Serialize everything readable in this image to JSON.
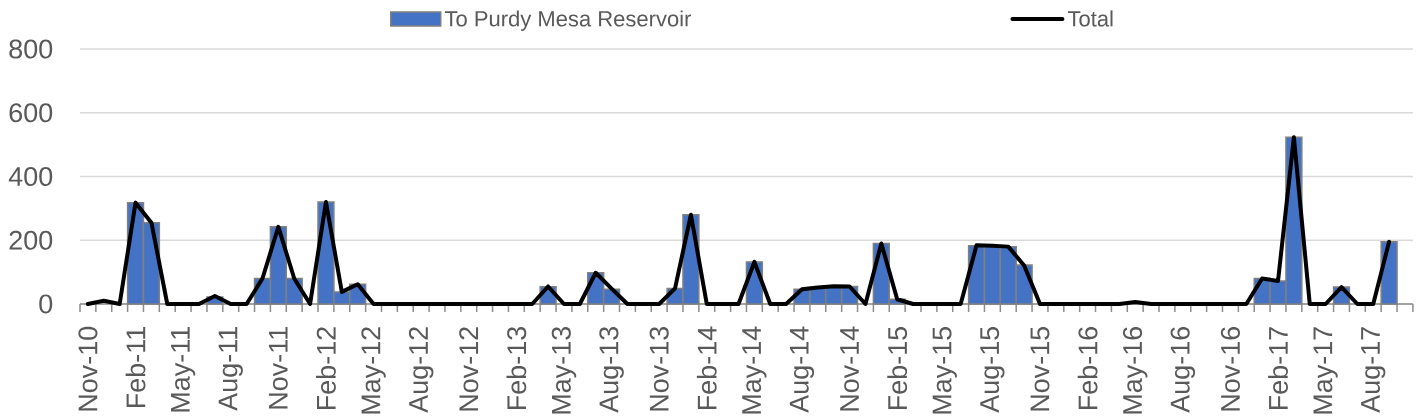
{
  "chart_data": {
    "type": "bar",
    "categories": [
      "Nov-10",
      null,
      null,
      "Feb-11",
      null,
      null,
      "May-11",
      null,
      null,
      "Aug-11",
      null,
      null,
      "Nov-11",
      null,
      null,
      "Feb-12",
      null,
      null,
      "May-12",
      null,
      null,
      "Aug-12",
      null,
      null,
      "Nov-12",
      null,
      null,
      "Feb-13",
      null,
      null,
      "May-13",
      null,
      null,
      "Aug-13",
      null,
      null,
      "Nov-13",
      null,
      null,
      "Feb-14",
      null,
      null,
      "May-14",
      null,
      null,
      "Aug-14",
      null,
      null,
      "Nov-14",
      null,
      null,
      "Feb-15",
      null,
      null,
      "May-15",
      null,
      null,
      "Aug-15",
      null,
      null,
      "Nov-15",
      null,
      null,
      "Feb-16",
      null,
      null,
      "May-16",
      null,
      null,
      "Aug-16",
      null,
      null,
      "Nov-16",
      null,
      null,
      "Feb-17",
      null,
      null,
      "May-17",
      null,
      null,
      "Aug-17",
      null,
      null
    ],
    "series": [
      {
        "name": "To Purdy Mesa Reservoir",
        "color": "#4472c4",
        "values": [
          null,
          null,
          null,
          318,
          255,
          null,
          null,
          null,
          22,
          null,
          null,
          80,
          242,
          80,
          null,
          320,
          38,
          62,
          null,
          null,
          null,
          null,
          null,
          null,
          null,
          null,
          null,
          null,
          null,
          54,
          null,
          null,
          98,
          46,
          null,
          null,
          null,
          49,
          280,
          null,
          null,
          null,
          132,
          null,
          null,
          46,
          52,
          56,
          55,
          null,
          190,
          15,
          null,
          null,
          null,
          null,
          183,
          183,
          180,
          122,
          null,
          null,
          null,
          null,
          null,
          null,
          null,
          null,
          null,
          null,
          null,
          null,
          null,
          null,
          80,
          72,
          523,
          null,
          null,
          53,
          null,
          null,
          195,
          null
        ]
      },
      {
        "name": "Total",
        "type": "line",
        "color": "#000000",
        "values": [
          0,
          10,
          0,
          318,
          255,
          0,
          0,
          0,
          25,
          0,
          0,
          80,
          242,
          80,
          0,
          320,
          38,
          62,
          0,
          0,
          0,
          0,
          0,
          0,
          0,
          0,
          0,
          0,
          0,
          55,
          0,
          0,
          98,
          48,
          0,
          0,
          0,
          49,
          280,
          0,
          0,
          0,
          132,
          0,
          0,
          46,
          52,
          56,
          55,
          0,
          190,
          15,
          0,
          0,
          0,
          0,
          184,
          183,
          180,
          121,
          0,
          0,
          0,
          0,
          0,
          0,
          6,
          0,
          0,
          0,
          0,
          0,
          0,
          0,
          80,
          72,
          523,
          0,
          0,
          53,
          0,
          0,
          195,
          null
        ]
      }
    ],
    "ylim": [
      0,
      800
    ],
    "yticks": [
      0,
      200,
      400,
      600,
      800
    ],
    "grid": "y",
    "legend": "top",
    "line_style": "solid"
  }
}
